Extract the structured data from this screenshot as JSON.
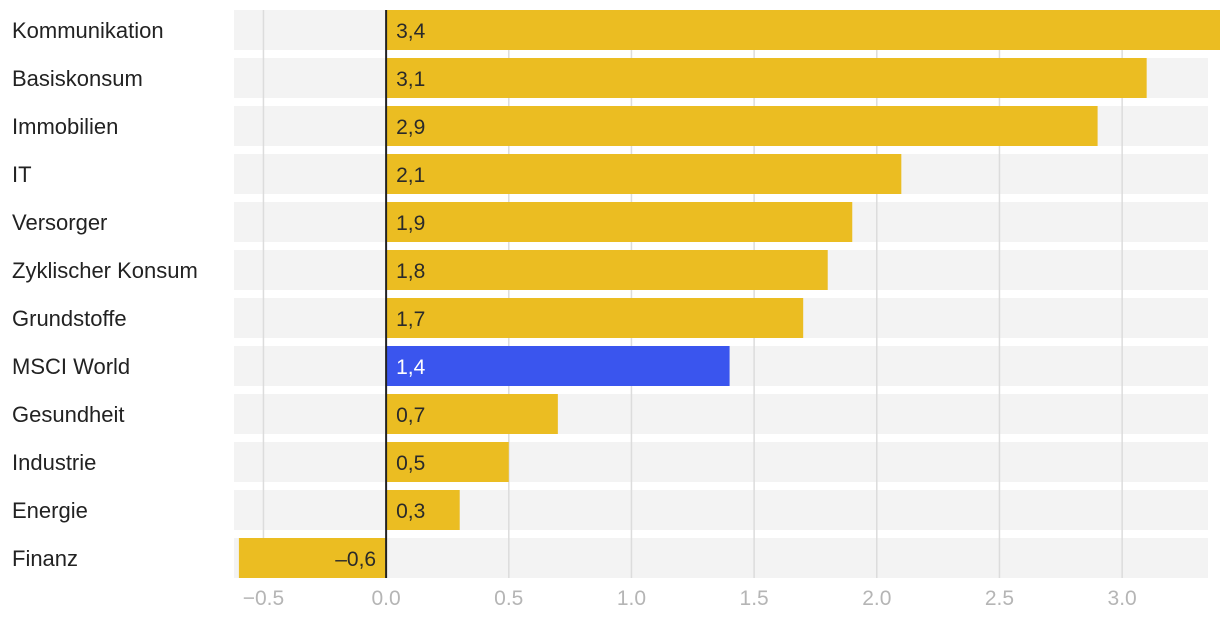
{
  "chart_data": {
    "type": "bar",
    "orientation": "horizontal",
    "categories": [
      "Kommunikation",
      "Basiskonsum",
      "Immobilien",
      "IT",
      "Versorger",
      "Zyklischer Konsum",
      "Grundstoffe",
      "MSCI World",
      "Gesundheit",
      "Industrie",
      "Energie",
      "Finanz"
    ],
    "values": [
      3.4,
      3.1,
      2.9,
      2.1,
      1.9,
      1.8,
      1.7,
      1.4,
      0.7,
      0.5,
      0.3,
      -0.6
    ],
    "value_labels": [
      "3,4",
      "3,1",
      "2,9",
      "2,1",
      "1,9",
      "1,8",
      "1,7",
      "1,4",
      "0,7",
      "0,5",
      "0,3",
      "–0,6"
    ],
    "highlight_category": "MSCI World",
    "xlim": [
      -0.62,
      3.35
    ],
    "xticks": [
      -0.5,
      0.0,
      0.5,
      1.0,
      1.5,
      2.0,
      2.5,
      3.0
    ],
    "xtick_labels": [
      "−0.5",
      "0.0",
      "0.5",
      "1.0",
      "1.5",
      "2.0",
      "2.5",
      "3.0"
    ],
    "title": "",
    "xlabel": "",
    "ylabel": "",
    "grid": true,
    "legend": "none"
  },
  "colors": {
    "bar": "#ebbd22",
    "highlight": "#3a55ee",
    "row_background": "#f3f3f3",
    "gridline": "#dcdcdc",
    "zero_line": "#222222",
    "label_on_bar": "#2a2a2a",
    "label_on_highlight": "#ffffff"
  }
}
